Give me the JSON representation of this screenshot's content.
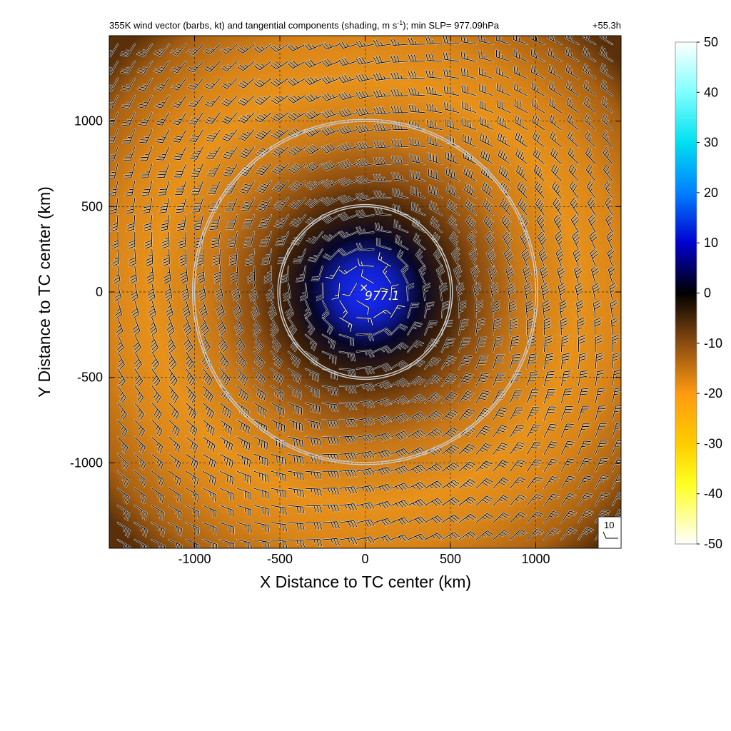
{
  "figure": {
    "title": "355K wind vector (barbs, kt) and tangential components (shading, m s",
    "title_superscript": "-1",
    "title_tail": "); min SLP= 977.09hPa",
    "forecast_hour": "+55.3h"
  },
  "colors": {
    "shading_stops": [
      "#ffffff",
      "#ffff80",
      "#ffff00",
      "#ffcc00",
      "#ff9500",
      "#e08a20",
      "#b06010",
      "#5a300a",
      "#000000",
      "#000080",
      "#0000ff",
      "#00c8ff",
      "#00ffff",
      "#ffffff"
    ],
    "ring": "#cccccc",
    "barb": "#000000"
  },
  "chart_data": {
    "type": "heatmap",
    "title": "355K wind vector (barbs, kt) and tangential components (shading, m s-1); min SLP= 977.09hPa",
    "annotation_time": "+55.3h",
    "xlabel": "X Distance to TC center (km)",
    "ylabel": "Y Distance to TC center (km)",
    "xlim": [
      -1500,
      1500
    ],
    "ylim": [
      -1500,
      1500
    ],
    "x_ticks": [
      -1000,
      -500,
      0,
      500,
      1000
    ],
    "y_ticks": [
      -1000,
      -500,
      0,
      500,
      1000
    ],
    "x_tick_labels": [
      "-1000",
      "-500",
      "0",
      "500",
      "1000"
    ],
    "y_tick_labels": [
      "-1000",
      "-500",
      "0",
      "500",
      "1000"
    ],
    "grid": true,
    "shading_variable": "tangential wind component (m s-1)",
    "colorbar": {
      "range": [
        -50,
        50
      ],
      "ticks": [
        50,
        40,
        30,
        20,
        10,
        0,
        -10,
        -20,
        -30,
        -40,
        -50
      ],
      "tick_labels": [
        "50",
        "40",
        "30",
        "20",
        "10",
        "0",
        "-10",
        "-20",
        "-30",
        "-40",
        "-50"
      ],
      "position": "right"
    },
    "tangential_wind_profile": {
      "radius_km": [
        0,
        100,
        200,
        300,
        400,
        500,
        700,
        900,
        1100,
        1300,
        1500
      ],
      "value_ms": [
        30,
        20,
        5,
        -6,
        -11,
        -15,
        -19,
        -21,
        -23,
        -20,
        -15
      ]
    },
    "wind_barbs": {
      "units": "kt",
      "spacing_km": 100,
      "speed_by_radius_kt": {
        "radius_km": [
          0,
          200,
          400,
          600,
          800,
          1000,
          1200,
          1500
        ],
        "speed_kt": [
          10,
          15,
          25,
          35,
          40,
          40,
          35,
          25
        ]
      },
      "reference_barb_kt": 10,
      "reference_label": "10"
    },
    "range_rings_km": [
      500,
      1000
    ],
    "center": {
      "x": 0,
      "y": 0,
      "marker": "x",
      "label": "977.1"
    }
  }
}
